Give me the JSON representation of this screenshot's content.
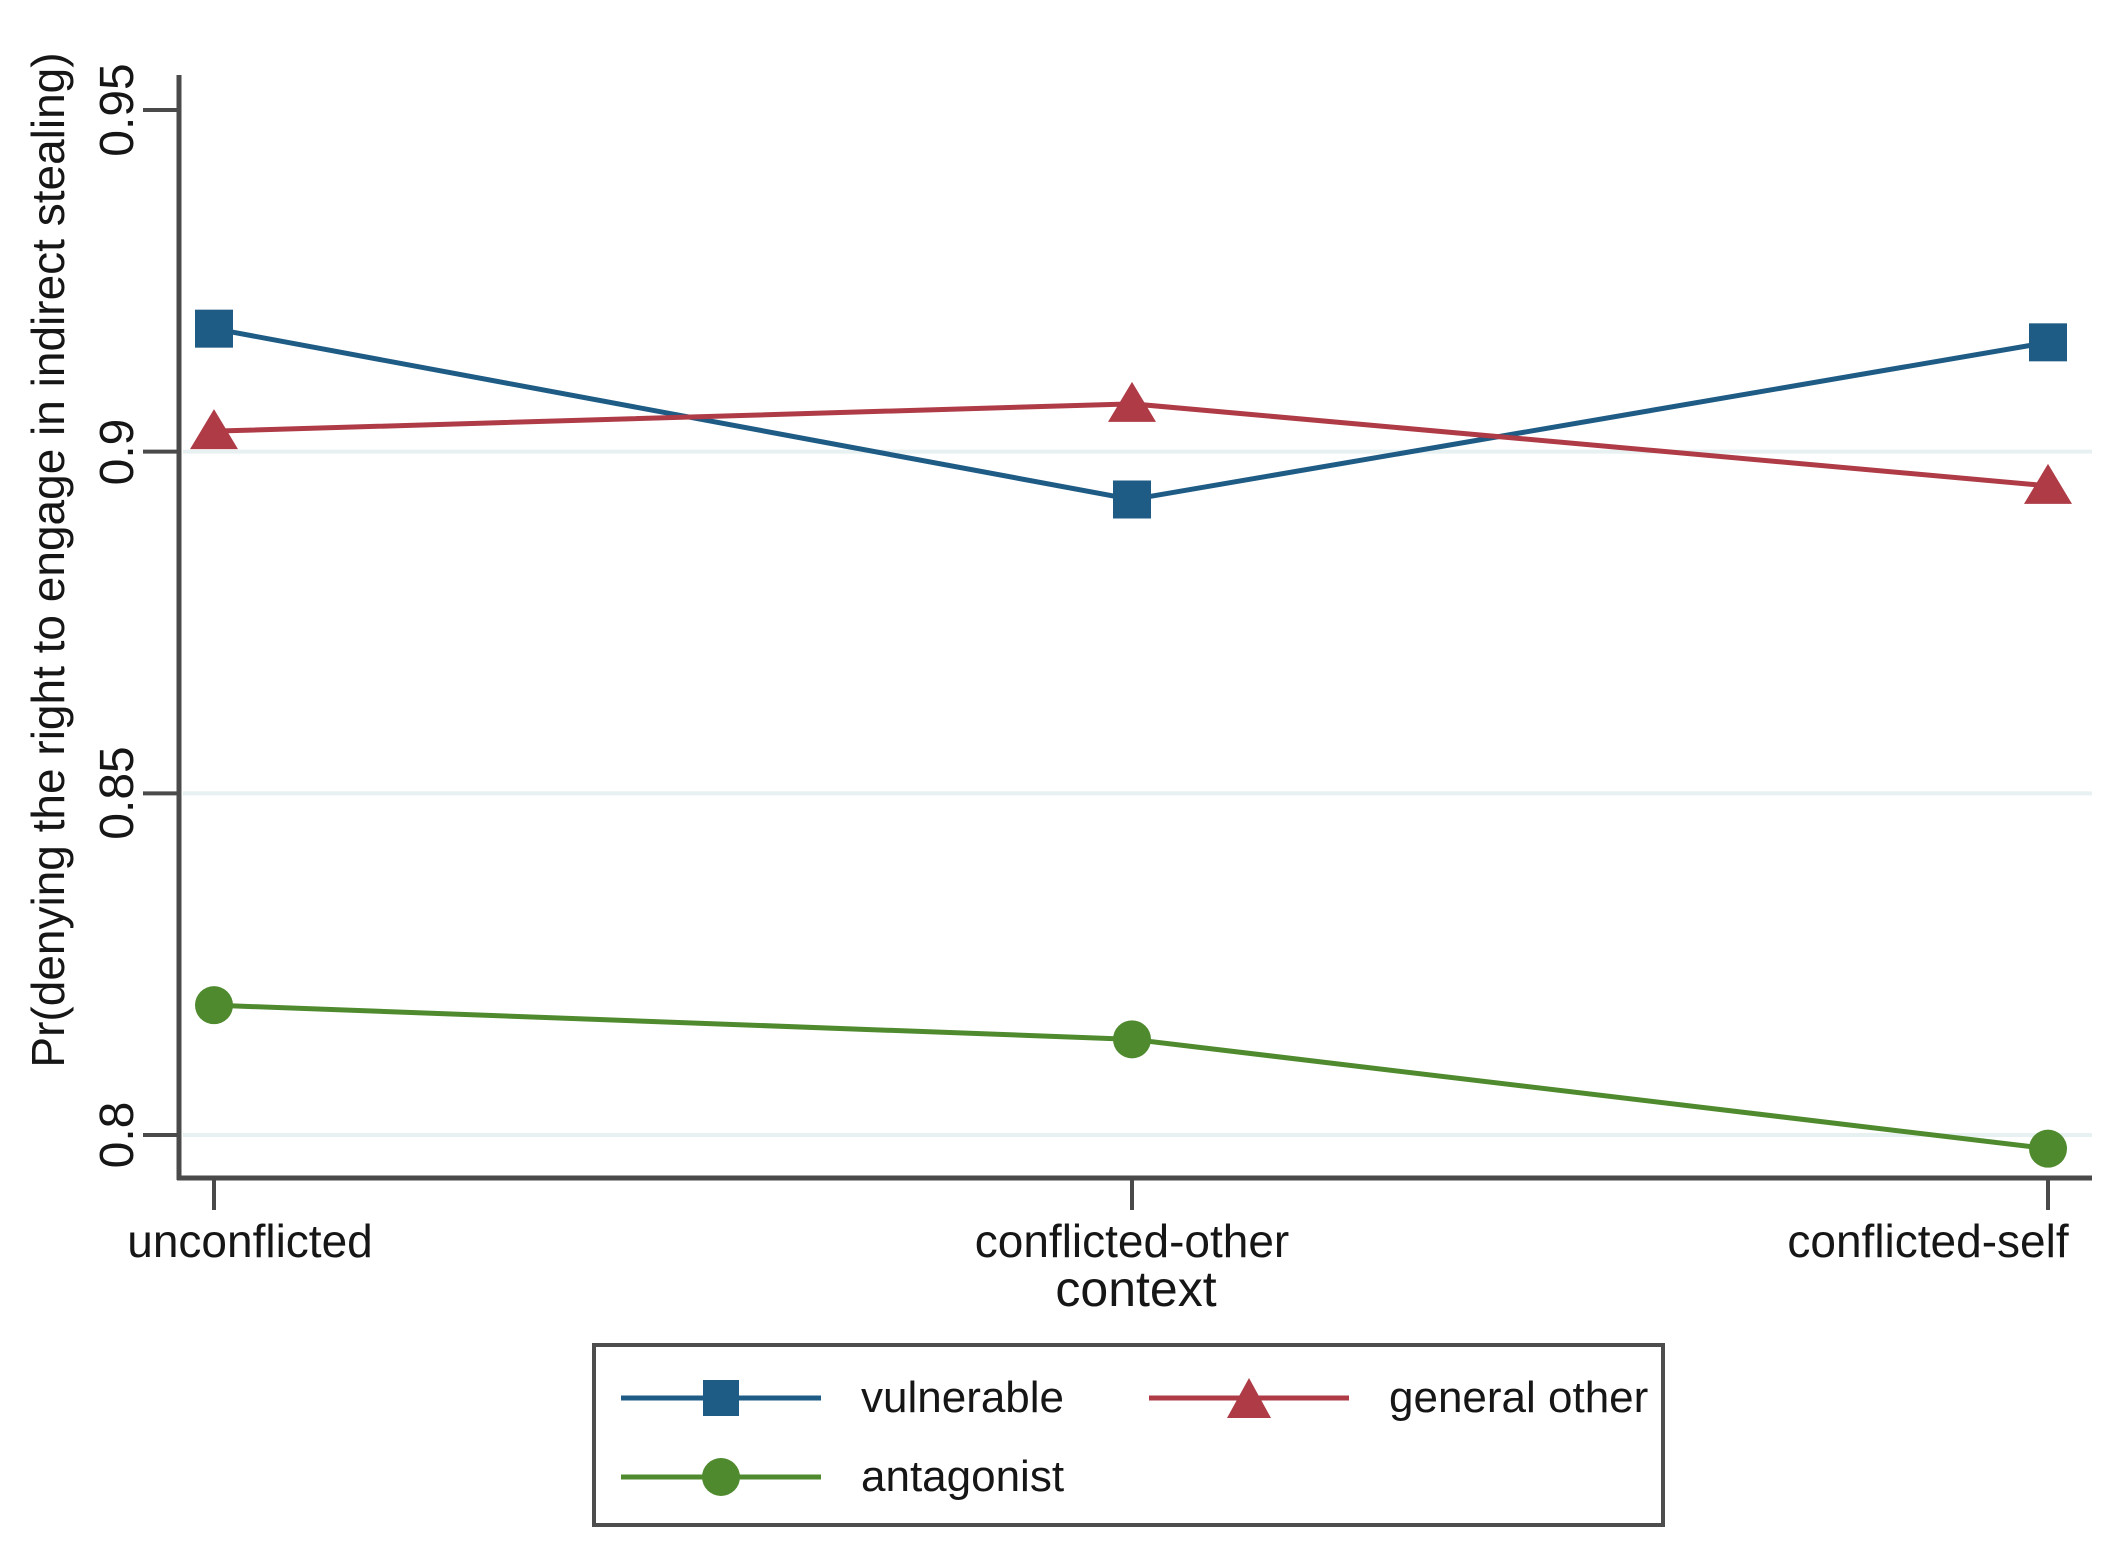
{
  "figure": {
    "background": "#ffffff",
    "axis_color": "#4a4a4a",
    "grid_color": "#e7f1f1",
    "text_color": "#161616",
    "legend_border_color": "#4d4d4d"
  },
  "chart_data": {
    "type": "line",
    "title": "",
    "xlabel": "context",
    "ylabel": "Pr(denying the right to engage in indirect stealing)",
    "categories": [
      "unconflicted",
      "conflicted-other",
      "conflicted-self"
    ],
    "series": [
      {
        "name": "vulnerable",
        "marker": "square",
        "color": "#1e5b85",
        "values": [
          0.918,
          0.893,
          0.916
        ]
      },
      {
        "name": "general other",
        "marker": "triangle",
        "color": "#ae3b46",
        "values": [
          0.903,
          0.907,
          0.895
        ]
      },
      {
        "name": "antagonist",
        "marker": "circle",
        "color": "#4f8a2e",
        "values": [
          0.819,
          0.814,
          0.798
        ]
      }
    ],
    "ylim": [
      0.794,
      0.955
    ],
    "yticks": [
      0.8,
      0.85,
      0.9,
      0.95
    ],
    "ytick_labels": [
      "0.8",
      "0.85",
      "0.9",
      "0.95"
    ],
    "grid_ticks": [
      0.8,
      0.85,
      0.9
    ],
    "grid": "horizontal-light",
    "legend_position": "bottom"
  }
}
